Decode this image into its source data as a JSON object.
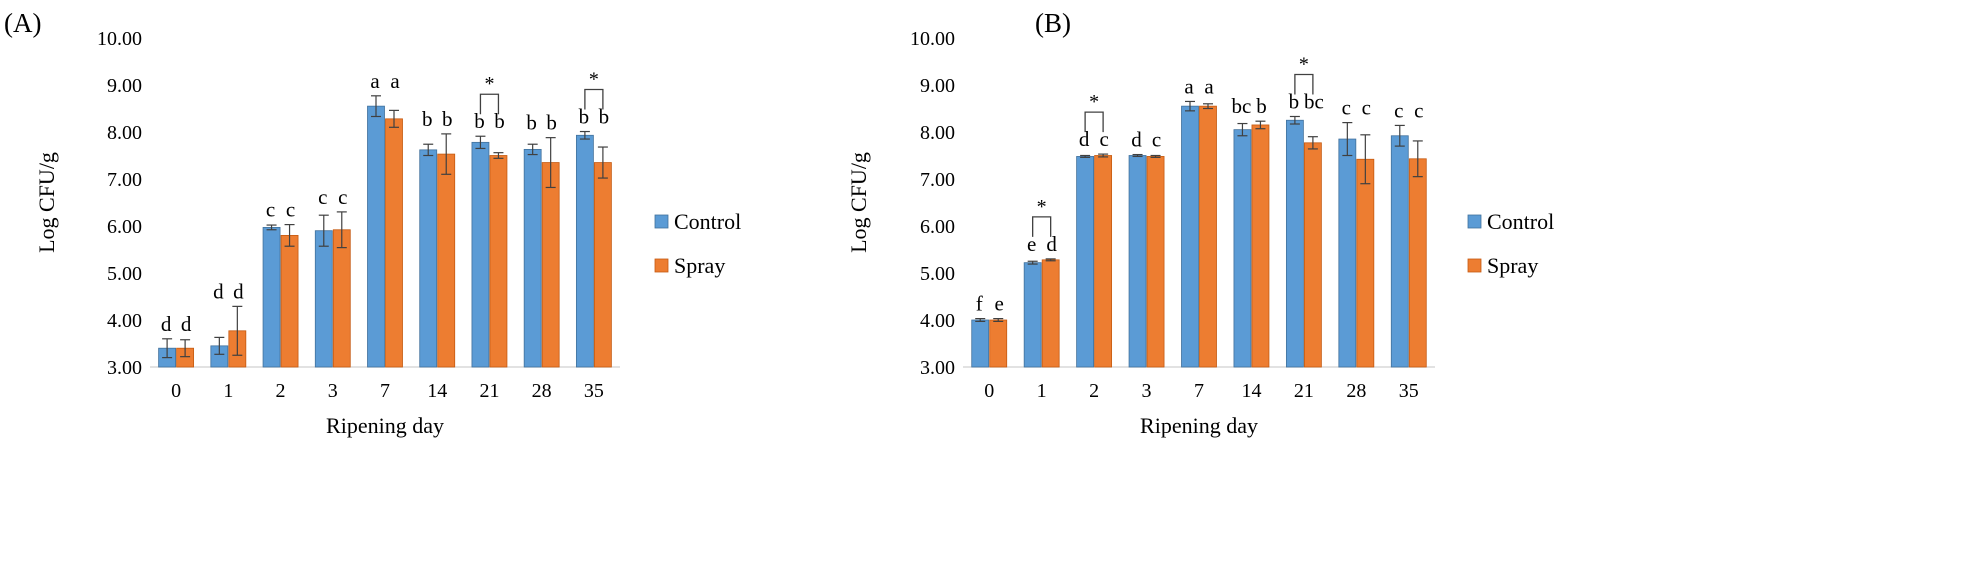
{
  "chart_data": [
    {
      "panel_label": "(A)",
      "type": "bar",
      "xlabel": "Ripening day",
      "ylabel": "Log CFU/g",
      "categories": [
        "0",
        "1",
        "2",
        "3",
        "7",
        "14",
        "21",
        "28",
        "35"
      ],
      "ylim": [
        3.0,
        10.0
      ],
      "yticks": [
        "3.00",
        "4.00",
        "5.00",
        "6.00",
        "7.00",
        "8.00",
        "9.00",
        "10.00"
      ],
      "legend_position": "right",
      "colors": {
        "control": "#5b9bd5",
        "spray": "#ed7d31",
        "error_bar": "#404040"
      },
      "series": [
        {
          "name": "Control",
          "values": [
            3.4,
            3.45,
            5.97,
            5.9,
            8.55,
            7.62,
            7.78,
            7.63,
            7.93
          ],
          "errors": [
            0.2,
            0.18,
            0.05,
            0.33,
            0.22,
            0.12,
            0.13,
            0.11,
            0.08
          ],
          "letters": [
            "d",
            "d",
            "c",
            "c",
            "a",
            "b",
            "b",
            "b",
            "b"
          ]
        },
        {
          "name": "Spray",
          "values": [
            3.4,
            3.77,
            5.8,
            5.92,
            8.28,
            7.53,
            7.5,
            7.35,
            7.35
          ],
          "errors": [
            0.18,
            0.52,
            0.23,
            0.38,
            0.18,
            0.43,
            0.06,
            0.53,
            0.33
          ],
          "letters": [
            "d",
            "d",
            "c",
            "c",
            "a",
            "b",
            "b",
            "b",
            "b"
          ]
        }
      ],
      "significance": [
        {
          "category": "21",
          "mark": "*"
        },
        {
          "category": "35",
          "mark": "*"
        }
      ]
    },
    {
      "panel_label": "(B)",
      "type": "bar",
      "xlabel": "Ripening day",
      "ylabel": "Log CFU/g",
      "categories": [
        "0",
        "1",
        "2",
        "3",
        "7",
        "14",
        "21",
        "28",
        "35"
      ],
      "ylim": [
        3.0,
        10.0
      ],
      "yticks": [
        "3.00",
        "4.00",
        "5.00",
        "6.00",
        "7.00",
        "8.00",
        "9.00",
        "10.00"
      ],
      "legend_position": "right",
      "colors": {
        "control": "#5b9bd5",
        "spray": "#ed7d31",
        "error_bar": "#404040"
      },
      "series": [
        {
          "name": "Control",
          "values": [
            4.0,
            5.22,
            7.48,
            7.5,
            8.55,
            8.05,
            8.25,
            7.85,
            7.92
          ],
          "errors": [
            0.03,
            0.03,
            0.02,
            0.02,
            0.1,
            0.13,
            0.08,
            0.35,
            0.22
          ],
          "letters": [
            "f",
            "e",
            "d",
            "d",
            "a",
            "bc",
            "b",
            "c",
            "c"
          ]
        },
        {
          "name": "Spray",
          "values": [
            4.0,
            5.28,
            7.5,
            7.48,
            8.55,
            8.15,
            7.77,
            7.42,
            7.43
          ],
          "errors": [
            0.03,
            0.02,
            0.03,
            0.02,
            0.05,
            0.08,
            0.13,
            0.52,
            0.38
          ],
          "letters": [
            "e",
            "d",
            "c",
            "c",
            "a",
            "b",
            "bc",
            "c",
            "c"
          ]
        }
      ],
      "significance": [
        {
          "category": "1",
          "mark": "*"
        },
        {
          "category": "2",
          "mark": "*"
        },
        {
          "category": "21",
          "mark": "*"
        }
      ]
    }
  ]
}
